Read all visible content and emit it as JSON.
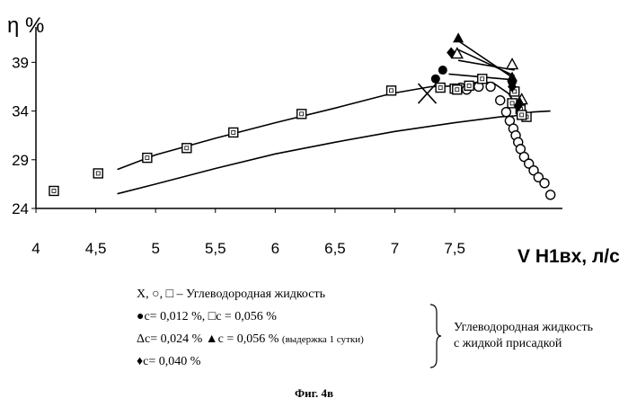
{
  "chart_data": {
    "type": "scatter",
    "y_axis_label": "η %",
    "x_axis_label": "V H1вх, л/с",
    "x_ticks": [
      "4",
      "4,5",
      "5",
      "5,5",
      "6",
      "6,5",
      "7",
      "7,5"
    ],
    "y_ticks": [
      "24",
      "29",
      "34",
      "39"
    ],
    "xlim": [
      4,
      8.4
    ],
    "ylim": [
      24,
      43
    ],
    "grid": false,
    "series": [
      {
        "name": "X",
        "marker": "cross",
        "points": [
          [
            7.27,
            35.8
          ]
        ]
      },
      {
        "name": "○",
        "marker": "circle",
        "points": [
          [
            7.55,
            36.4
          ],
          [
            7.6,
            36.2
          ],
          [
            7.7,
            36.5
          ],
          [
            7.8,
            36.5
          ],
          [
            7.88,
            35.1
          ],
          [
            7.93,
            33.9
          ],
          [
            7.96,
            33.0
          ],
          [
            7.99,
            32.2
          ],
          [
            8.01,
            31.5
          ],
          [
            8.03,
            30.8
          ],
          [
            8.05,
            30.1
          ],
          [
            8.08,
            29.3
          ],
          [
            8.12,
            28.6
          ],
          [
            8.16,
            27.9
          ],
          [
            8.2,
            27.2
          ],
          [
            8.25,
            26.6
          ],
          [
            8.3,
            25.4
          ]
        ]
      },
      {
        "name": "□",
        "marker": "square",
        "points": [
          [
            4.15,
            25.8
          ],
          [
            4.52,
            27.6
          ],
          [
            4.93,
            29.2
          ],
          [
            5.26,
            30.2
          ],
          [
            5.65,
            31.8
          ],
          [
            6.22,
            33.7
          ],
          [
            6.97,
            36.1
          ],
          [
            7.5,
            36.3
          ],
          [
            7.62,
            36.6
          ],
          [
            7.73,
            37.3
          ],
          [
            8.0,
            36.0
          ],
          [
            8.05,
            34.2
          ],
          [
            8.1,
            33.4
          ]
        ]
      },
      {
        "name": "●c= 0,012 %",
        "marker": "filled-circle",
        "points": [
          [
            7.34,
            37.3
          ],
          [
            7.4,
            38.2
          ],
          [
            7.98,
            37.0
          ]
        ]
      },
      {
        "name": "□c = 0,056 %",
        "marker": "square",
        "points": [
          [
            7.38,
            36.4
          ],
          [
            7.52,
            36.2
          ],
          [
            7.98,
            34.8
          ],
          [
            8.06,
            33.6
          ]
        ]
      },
      {
        "name": "Δc= 0,024 %",
        "marker": "triangle",
        "points": [
          [
            7.52,
            39.9
          ],
          [
            7.98,
            38.8
          ],
          [
            8.06,
            35.2
          ]
        ]
      },
      {
        "name": "▲c = 0,056 % (выдержка 1 сутки)",
        "marker": "filled-triangle",
        "points": [
          [
            7.53,
            41.5
          ],
          [
            7.98,
            37.5
          ],
          [
            8.04,
            35.0
          ]
        ]
      },
      {
        "name": "♦c= 0,040 %",
        "marker": "filled-diamond",
        "points": [
          [
            7.47,
            40.0
          ],
          [
            7.98,
            36.5
          ],
          [
            8.03,
            34.5
          ]
        ]
      }
    ],
    "lines": [
      {
        "points": [
          [
            4.68,
            28.0
          ],
          [
            5.0,
            29.5
          ],
          [
            5.5,
            31.2
          ],
          [
            6.0,
            32.8
          ],
          [
            6.5,
            34.3
          ],
          [
            6.97,
            35.8
          ],
          [
            7.3,
            36.5
          ],
          [
            7.55,
            36.6
          ],
          [
            7.7,
            37.0
          ],
          [
            7.82,
            36.9
          ],
          [
            7.95,
            35.8
          ],
          [
            8.05,
            33.8
          ]
        ]
      },
      {
        "points": [
          [
            4.68,
            25.5
          ],
          [
            5.0,
            26.5
          ],
          [
            5.5,
            28.1
          ],
          [
            6.0,
            29.6
          ],
          [
            6.5,
            30.8
          ],
          [
            7.0,
            31.9
          ],
          [
            7.5,
            32.8
          ],
          [
            7.88,
            33.4
          ],
          [
            8.0,
            33.5
          ],
          [
            8.15,
            33.9
          ],
          [
            8.3,
            34.0
          ]
        ]
      },
      {
        "points": [
          [
            7.53,
            39.2
          ],
          [
            8.0,
            38.2
          ]
        ]
      },
      {
        "points": [
          [
            7.53,
            40.3
          ],
          [
            8.0,
            37.6
          ]
        ]
      },
      {
        "points": [
          [
            7.53,
            41.2
          ],
          [
            8.0,
            37.3
          ]
        ]
      },
      {
        "points": [
          [
            7.45,
            37.8
          ],
          [
            8.0,
            37.2
          ]
        ]
      }
    ]
  },
  "legend": {
    "line1": "X, ○, □ – Углеводородная жидкость",
    "line2_a": "●c= 0,012 %,",
    "line2_b": "□c = 0,056 %",
    "line3_a": "Δc= 0,024 %",
    "line3_b": "▲c = 0,056 %",
    "line3_note": "(выдержка 1 сутки)",
    "line4": "♦c= 0,040 %",
    "group_label_1": "Углеводородная жидкость",
    "group_label_2": "с жидкой присадкой"
  },
  "caption": "Фиг. 4в"
}
